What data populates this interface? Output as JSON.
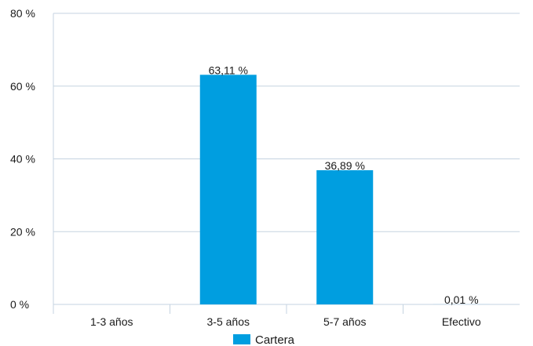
{
  "chart_data": {
    "type": "bar",
    "title": "",
    "xlabel": "",
    "ylabel": "",
    "categories": [
      "1-3 años",
      "3-5 años",
      "5-7 años",
      "Efectivo"
    ],
    "series": [
      {
        "name": "Cartera",
        "values": [
          0,
          63.11,
          36.89,
          0.01
        ],
        "labels": [
          "",
          "63,11 %",
          "36,89 %",
          "0,01 %"
        ],
        "color": "#009ee0"
      }
    ],
    "ylim": [
      0,
      80
    ],
    "yticks": [
      0,
      20,
      40,
      60,
      80
    ],
    "ytick_labels": [
      "0 %",
      "20 %",
      "40 %",
      "60 %",
      "80 %"
    ],
    "grid": true,
    "grid_color": "#c5d3e0",
    "legend": {
      "position": "bottom",
      "entries": [
        "Cartera"
      ]
    }
  }
}
